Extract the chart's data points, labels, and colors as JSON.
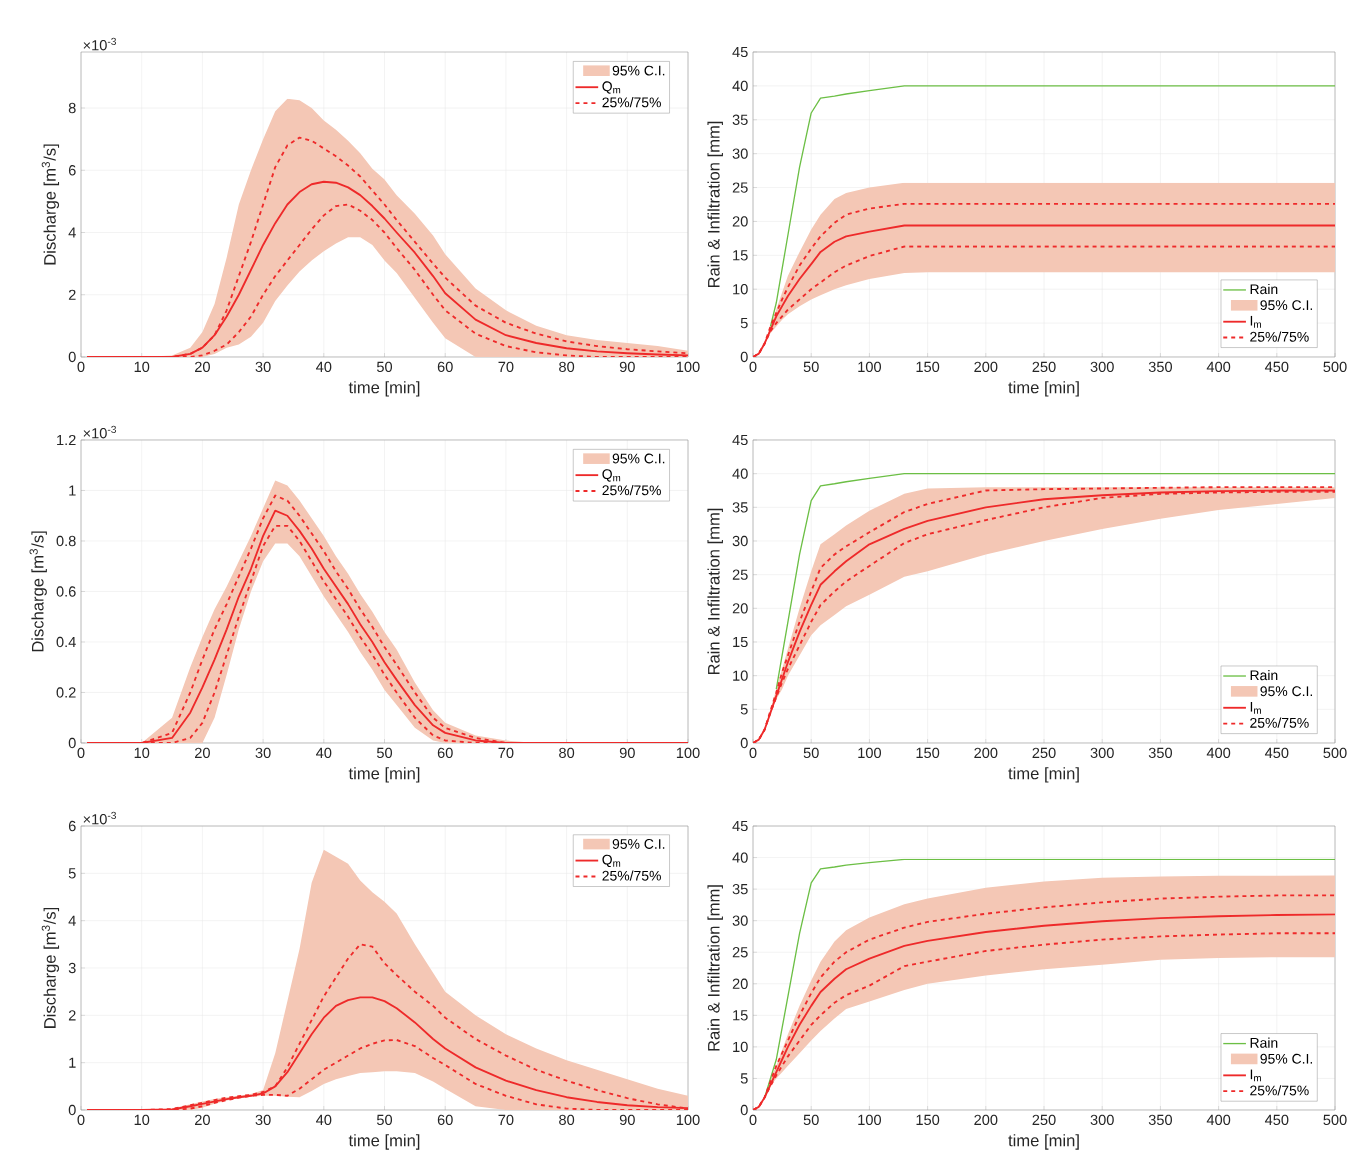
{
  "chart_data": [
    {
      "type": "line",
      "xlabel": "time [min]",
      "ylabel": "Discharge [m$^{3}$/s]",
      "annotations": [
        "×10$^{-3}$",
        "95% C.I."
      ],
      "grid": true,
      "legend": "top right",
      "xlim": [
        0,
        100
      ],
      "xticks": [
        0,
        10,
        20,
        30,
        40,
        50,
        60,
        70,
        80,
        90,
        100
      ],
      "ylim": [
        0,
        9.8
      ],
      "yticks": [
        0,
        2,
        4,
        6,
        8
      ],
      "x": [
        1,
        10,
        15,
        18,
        20,
        22,
        24,
        26,
        28,
        30,
        32,
        34,
        36,
        38,
        40,
        42,
        44,
        46,
        48,
        50,
        52,
        55,
        58,
        60,
        65,
        70,
        75,
        80,
        85,
        90,
        95,
        100
      ],
      "series": [
        {
          "name": "Q$_{m}$",
          "color": "#ee2a2a",
          "values": [
            0,
            0,
            0,
            0.1,
            0.3,
            0.7,
            1.3,
            2.0,
            2.8,
            3.6,
            4.3,
            4.9,
            5.3,
            5.55,
            5.63,
            5.6,
            5.45,
            5.2,
            4.85,
            4.45,
            4.0,
            3.35,
            2.6,
            2.05,
            1.2,
            0.7,
            0.45,
            0.28,
            0.18,
            0.12,
            0.08,
            0.05
          ],
          "upper": [
            0,
            0,
            0.05,
            0.3,
            0.8,
            1.7,
            3.2,
            4.9,
            6.0,
            7.0,
            7.9,
            8.3,
            8.25,
            8.0,
            7.6,
            7.3,
            6.95,
            6.55,
            6.05,
            5.7,
            5.2,
            4.6,
            3.9,
            3.3,
            2.2,
            1.5,
            1.0,
            0.7,
            0.55,
            0.45,
            0.35,
            0.2
          ],
          "lower": [
            0,
            0,
            0,
            0,
            0,
            0.1,
            0.3,
            0.4,
            0.65,
            1.1,
            1.8,
            2.3,
            2.75,
            3.1,
            3.4,
            3.65,
            3.85,
            3.85,
            3.6,
            3.1,
            2.7,
            1.9,
            1.1,
            0.6,
            0,
            0,
            0,
            0,
            0,
            0,
            0,
            0
          ]
        },
        {
          "name": "25%/75%",
          "color": "#ee2a2a",
          "line_style": "dashed",
          "values": [
            0,
            0,
            0,
            0.1,
            0.3,
            0.7,
            1.5,
            2.6,
            3.7,
            4.9,
            6.1,
            6.8,
            7.05,
            6.95,
            6.7,
            6.45,
            6.15,
            5.8,
            5.35,
            4.9,
            4.4,
            3.7,
            3.0,
            2.55,
            1.65,
            1.1,
            0.75,
            0.5,
            0.35,
            0.25,
            0.18,
            0.12
          ]
        },
        {
          "color": "#ee2a2a",
          "line_style": "dashed",
          "values": [
            0,
            0,
            0,
            0,
            0.05,
            0.2,
            0.4,
            0.8,
            1.3,
            2.0,
            2.6,
            3.1,
            3.6,
            4.1,
            4.55,
            4.85,
            4.9,
            4.7,
            4.4,
            4.0,
            3.5,
            2.8,
            2.0,
            1.5,
            0.75,
            0.35,
            0.15,
            0.05,
            0,
            0,
            0,
            0
          ]
        }
      ]
    },
    {
      "type": "line",
      "xlabel": "time [min]",
      "ylabel": "Rain & Infiltration [mm]",
      "annotations": [
        "95% C.I."
      ],
      "grid": true,
      "legend": "bottom right",
      "xlim": [
        0,
        500
      ],
      "xticks": [
        0,
        50,
        100,
        150,
        200,
        250,
        300,
        350,
        400,
        450,
        500
      ],
      "ylim": [
        0,
        45
      ],
      "yticks": [
        0,
        5,
        10,
        15,
        20,
        25,
        30,
        35,
        40,
        45
      ],
      "x": [
        0,
        5,
        10,
        15,
        20,
        25,
        30,
        40,
        50,
        58,
        70,
        80,
        100,
        130,
        150,
        200,
        250,
        300,
        350,
        400,
        450,
        500
      ],
      "series": [
        {
          "name": "Rain",
          "color": "#6cbf45",
          "values": [
            null,
            null,
            null,
            4.5,
            8,
            13,
            18,
            28,
            36,
            38.2,
            38.5,
            38.8,
            39.3,
            40,
            40,
            40,
            40,
            40,
            40,
            40,
            40,
            40
          ]
        },
        {
          "name": "I$_{m}$",
          "color": "#ee2a2a",
          "values": [
            0,
            0.5,
            2,
            4,
            6,
            7.5,
            9,
            11.5,
            13.7,
            15.5,
            17,
            17.8,
            18.5,
            19.4,
            19.4,
            19.4,
            19.4,
            19.4,
            19.4,
            19.4,
            19.4,
            19.4
          ],
          "upper": [
            0,
            0.5,
            2,
            4.5,
            7,
            9.5,
            12,
            15.5,
            18.8,
            21,
            23.3,
            24.2,
            25,
            25.7,
            25.7,
            25.7,
            25.7,
            25.7,
            25.7,
            25.7,
            25.7,
            25.7
          ],
          "lower": [
            0,
            0.5,
            2,
            3.5,
            4.5,
            5.5,
            6.3,
            7.5,
            8.5,
            9.1,
            10,
            10.6,
            11.5,
            12.4,
            12.5,
            12.5,
            12.5,
            12.5,
            12.5,
            12.5,
            12.5,
            12.5
          ]
        },
        {
          "name": "25%/75%",
          "color": "#ee2a2a",
          "line_style": "dashed",
          "values": [
            0,
            0.5,
            2,
            4.5,
            6.5,
            8.5,
            10.3,
            13.5,
            16,
            17.8,
            19.8,
            21,
            21.9,
            22.6,
            22.6,
            22.6,
            22.6,
            22.6,
            22.6,
            22.6,
            22.6,
            22.6
          ]
        },
        {
          "color": "#ee2a2a",
          "line_style": "dashed",
          "values": [
            0,
            0.5,
            2,
            3.8,
            5,
            6,
            7,
            8.5,
            10,
            11,
            12.5,
            13.5,
            14.9,
            16.3,
            16.3,
            16.3,
            16.3,
            16.3,
            16.3,
            16.3,
            16.3,
            16.3
          ]
        }
      ]
    },
    {
      "type": "line",
      "xlabel": "time [min]",
      "ylabel": "Discharge [m$^{3}$/s]",
      "annotations": [
        "×10$^{-3}$",
        "95% C.I."
      ],
      "grid": true,
      "legend": "top right",
      "xlim": [
        0,
        100
      ],
      "xticks": [
        0,
        10,
        20,
        30,
        40,
        50,
        60,
        70,
        80,
        90,
        100
      ],
      "ylim": [
        0,
        1.2
      ],
      "yticks": [
        0,
        0.2,
        0.4,
        0.6,
        0.8,
        1,
        1.2
      ],
      "x": [
        1,
        10,
        15,
        18,
        20,
        22,
        24,
        26,
        28,
        30,
        32,
        34,
        36,
        38,
        40,
        42,
        44,
        46,
        48,
        50,
        52,
        55,
        58,
        60,
        65,
        70,
        75,
        80,
        85,
        90,
        95,
        100
      ],
      "series": [
        {
          "name": "Q$_{m}$",
          "color": "#ee2a2a",
          "values": [
            0,
            0,
            0.02,
            0.12,
            0.22,
            0.33,
            0.45,
            0.58,
            0.69,
            0.82,
            0.92,
            0.9,
            0.84,
            0.77,
            0.69,
            0.62,
            0.55,
            0.47,
            0.4,
            0.32,
            0.25,
            0.15,
            0.07,
            0.04,
            0.01,
            0,
            0,
            0,
            0,
            0,
            0,
            0
          ],
          "upper": [
            0,
            0,
            0.1,
            0.3,
            0.42,
            0.53,
            0.62,
            0.72,
            0.82,
            0.93,
            1.04,
            1.02,
            0.96,
            0.89,
            0.82,
            0.74,
            0.67,
            0.59,
            0.52,
            0.44,
            0.37,
            0.24,
            0.13,
            0.08,
            0.03,
            0.01,
            0,
            0,
            0,
            0,
            0,
            0
          ],
          "lower": [
            0,
            0,
            0,
            0,
            0,
            0.1,
            0.27,
            0.45,
            0.6,
            0.72,
            0.79,
            0.79,
            0.74,
            0.66,
            0.58,
            0.51,
            0.44,
            0.36,
            0.29,
            0.21,
            0.15,
            0.06,
            0.01,
            0,
            0,
            0,
            0,
            0,
            0,
            0,
            0,
            0
          ]
        },
        {
          "name": "25%/75%",
          "color": "#ee2a2a",
          "line_style": "dashed",
          "values": [
            0,
            0,
            0.04,
            0.2,
            0.33,
            0.45,
            0.55,
            0.66,
            0.77,
            0.89,
            0.98,
            0.96,
            0.9,
            0.83,
            0.76,
            0.68,
            0.61,
            0.53,
            0.46,
            0.38,
            0.31,
            0.2,
            0.1,
            0.06,
            0.02,
            0,
            0,
            0,
            0,
            0,
            0,
            0
          ]
        },
        {
          "color": "#ee2a2a",
          "line_style": "dashed",
          "values": [
            0,
            0,
            0,
            0.02,
            0.08,
            0.2,
            0.35,
            0.5,
            0.64,
            0.78,
            0.86,
            0.86,
            0.8,
            0.72,
            0.64,
            0.57,
            0.5,
            0.42,
            0.35,
            0.27,
            0.2,
            0.1,
            0.03,
            0.01,
            0,
            0,
            0,
            0,
            0,
            0,
            0,
            0
          ]
        }
      ]
    },
    {
      "type": "line",
      "xlabel": "time [min]",
      "ylabel": "Rain & Infiltration [mm]",
      "annotations": [
        "95% C.I."
      ],
      "grid": true,
      "legend": "bottom right",
      "xlim": [
        0,
        500
      ],
      "xticks": [
        0,
        50,
        100,
        150,
        200,
        250,
        300,
        350,
        400,
        450,
        500
      ],
      "ylim": [
        0,
        45
      ],
      "yticks": [
        0,
        5,
        10,
        15,
        20,
        25,
        30,
        35,
        40,
        45
      ],
      "x": [
        0,
        5,
        10,
        15,
        20,
        25,
        30,
        40,
        50,
        58,
        70,
        80,
        100,
        130,
        150,
        200,
        250,
        300,
        350,
        400,
        450,
        500
      ],
      "series": [
        {
          "name": "Rain",
          "color": "#6cbf45",
          "values": [
            null,
            null,
            null,
            null,
            8,
            13,
            18,
            28,
            36,
            38.2,
            38.5,
            38.8,
            39.3,
            40,
            40,
            40,
            40,
            40,
            40,
            40,
            40,
            40
          ]
        },
        {
          "name": "I$_{m}$",
          "color": "#ee2a2a",
          "values": [
            0,
            0.5,
            2,
            4.5,
            7,
            9.5,
            12,
            16.5,
            20.5,
            23.5,
            25.5,
            27,
            29.5,
            31.8,
            33,
            35,
            36.2,
            36.8,
            37.2,
            37.4,
            37.5,
            37.5
          ],
          "upper": [
            0,
            0.5,
            2,
            5,
            8,
            11,
            14,
            20,
            25.5,
            29.5,
            31,
            32.3,
            34.5,
            37,
            37.8,
            38,
            38,
            38,
            38,
            38,
            38,
            38
          ],
          "lower": [
            0,
            0.5,
            2,
            4.5,
            6.5,
            8,
            10,
            13,
            16,
            17.5,
            19,
            20.3,
            22,
            24.7,
            25.5,
            28,
            30,
            31.8,
            33.3,
            34.6,
            35.5,
            36.4
          ]
        },
        {
          "name": "25%/75%",
          "color": "#ee2a2a",
          "line_style": "dashed",
          "values": [
            0,
            0.5,
            2,
            4.8,
            7.5,
            10.5,
            13,
            18,
            22.5,
            26,
            28,
            29.2,
            31.3,
            34.3,
            35.5,
            37.5,
            37.7,
            37.8,
            37.9,
            38,
            38,
            38
          ]
        },
        {
          "color": "#ee2a2a",
          "line_style": "dashed",
          "values": [
            0,
            0.5,
            2,
            4.5,
            6.8,
            9,
            11,
            14.5,
            18,
            20.5,
            22.5,
            24,
            26.3,
            29.7,
            31,
            33.1,
            35,
            36.4,
            37,
            37.2,
            37.3,
            37.3
          ]
        }
      ]
    },
    {
      "type": "line",
      "xlabel": "time [min]",
      "ylabel": "Discharge [m$^{3}$/s]",
      "annotations": [
        "×10$^{-3}$",
        "95% C.I."
      ],
      "grid": true,
      "legend": "top right",
      "xlim": [
        0,
        100
      ],
      "xticks": [
        0,
        10,
        20,
        30,
        40,
        50,
        60,
        70,
        80,
        90,
        100
      ],
      "ylim": [
        0,
        6
      ],
      "yticks": [
        0,
        1,
        2,
        3,
        4,
        5,
        6
      ],
      "x": [
        1,
        10,
        15,
        18,
        20,
        22,
        24,
        26,
        28,
        30,
        32,
        34,
        36,
        38,
        40,
        42,
        44,
        46,
        48,
        50,
        52,
        55,
        58,
        60,
        65,
        70,
        75,
        80,
        85,
        90,
        95,
        100
      ],
      "series": [
        {
          "name": "Q$_{m}$",
          "color": "#ee2a2a",
          "values": [
            0,
            0,
            0.01,
            0.08,
            0.13,
            0.18,
            0.23,
            0.27,
            0.3,
            0.35,
            0.5,
            0.8,
            1.2,
            1.6,
            1.95,
            2.2,
            2.32,
            2.38,
            2.38,
            2.3,
            2.15,
            1.85,
            1.5,
            1.3,
            0.9,
            0.62,
            0.42,
            0.27,
            0.17,
            0.1,
            0.06,
            0.04
          ],
          "upper": [
            0,
            0,
            0.03,
            0.12,
            0.18,
            0.23,
            0.27,
            0.3,
            0.34,
            0.42,
            1.2,
            2.3,
            3.4,
            4.8,
            5.5,
            5.35,
            5.2,
            4.85,
            4.6,
            4.4,
            4.15,
            3.5,
            2.9,
            2.5,
            2.0,
            1.6,
            1.3,
            1.05,
            0.85,
            0.65,
            0.45,
            0.3
          ],
          "lower": [
            0,
            0,
            0,
            0,
            0.05,
            0.13,
            0.2,
            0.25,
            0.28,
            0.3,
            0.3,
            0.28,
            0.27,
            0.4,
            0.55,
            0.65,
            0.72,
            0.78,
            0.8,
            0.82,
            0.82,
            0.78,
            0.6,
            0.45,
            0.08,
            0,
            0,
            0,
            0,
            0,
            0,
            0
          ]
        },
        {
          "name": "25%/75%",
          "color": "#ee2a2a",
          "line_style": "dashed",
          "values": [
            0,
            0,
            0.02,
            0.1,
            0.15,
            0.21,
            0.26,
            0.29,
            0.32,
            0.38,
            0.5,
            0.9,
            1.4,
            1.9,
            2.4,
            2.8,
            3.2,
            3.5,
            3.45,
            3.1,
            2.85,
            2.5,
            2.2,
            1.95,
            1.5,
            1.15,
            0.85,
            0.62,
            0.42,
            0.25,
            0.12,
            0.03
          ]
        },
        {
          "color": "#ee2a2a",
          "line_style": "dashed",
          "values": [
            0,
            0,
            0,
            0.03,
            0.08,
            0.15,
            0.21,
            0.26,
            0.3,
            0.32,
            0.32,
            0.3,
            0.45,
            0.65,
            0.85,
            1.0,
            1.15,
            1.3,
            1.4,
            1.47,
            1.48,
            1.35,
            1.1,
            0.95,
            0.55,
            0.3,
            0.12,
            0.03,
            0,
            0,
            0,
            0
          ]
        }
      ]
    },
    {
      "type": "line",
      "xlabel": "time [min]",
      "ylabel": "Rain & Infiltration [mm]",
      "annotations": [
        "95% C.I."
      ],
      "grid": true,
      "legend": "bottom right",
      "xlim": [
        0,
        500
      ],
      "xticks": [
        0,
        50,
        100,
        150,
        200,
        250,
        300,
        350,
        400,
        450,
        500
      ],
      "ylim": [
        0,
        45
      ],
      "yticks": [
        0,
        5,
        10,
        15,
        20,
        25,
        30,
        35,
        40,
        45
      ],
      "x": [
        0,
        5,
        10,
        15,
        20,
        25,
        30,
        40,
        50,
        58,
        70,
        80,
        100,
        130,
        150,
        200,
        250,
        300,
        350,
        400,
        450,
        500
      ],
      "series": [
        {
          "name": "Rain",
          "color": "#6cbf45",
          "values": [
            null,
            null,
            2,
            null,
            8,
            13,
            18,
            28,
            36,
            38.2,
            38.5,
            38.8,
            39.2,
            39.7,
            39.7,
            39.7,
            39.7,
            39.7,
            39.7,
            39.7,
            39.7,
            39.7
          ]
        },
        {
          "name": "I$_{m}$",
          "color": "#ee2a2a",
          "values": [
            0,
            0.5,
            2,
            4,
            6,
            8,
            10,
            13.5,
            16.5,
            18.7,
            20.8,
            22.3,
            24,
            26,
            26.8,
            28.2,
            29.2,
            29.9,
            30.4,
            30.7,
            30.9,
            31
          ],
          "upper": [
            0,
            0.5,
            2,
            5,
            7,
            9.5,
            12,
            16.5,
            20.5,
            23.5,
            26.7,
            28.5,
            30.5,
            32.6,
            33.5,
            35.2,
            36.2,
            36.8,
            37,
            37.1,
            37.1,
            37.15
          ],
          "lower": [
            0,
            0.5,
            2,
            3.8,
            5,
            6,
            7,
            9,
            11,
            12.5,
            14.5,
            16,
            17.2,
            19,
            20,
            21.3,
            22.3,
            23,
            23.8,
            24.1,
            24.2,
            24.2
          ]
        },
        {
          "name": "25%/75%",
          "color": "#ee2a2a",
          "line_style": "dashed",
          "values": [
            0,
            0.5,
            2,
            4.5,
            7,
            9,
            11,
            15,
            18.5,
            21,
            23.5,
            25,
            27,
            28.9,
            29.8,
            31.1,
            32.1,
            32.9,
            33.5,
            33.8,
            34,
            34
          ]
        },
        {
          "color": "#ee2a2a",
          "line_style": "dashed",
          "values": [
            0,
            0.5,
            2,
            3.8,
            5.5,
            7,
            8.5,
            11,
            13.5,
            15,
            17,
            18.2,
            19.7,
            22.8,
            23.5,
            25.2,
            26.2,
            27,
            27.5,
            27.8,
            28,
            28
          ]
        }
      ]
    }
  ]
}
